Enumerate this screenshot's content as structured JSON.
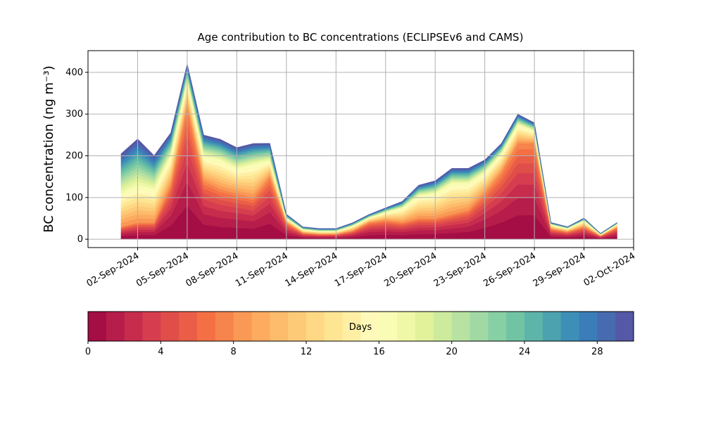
{
  "chart_data": {
    "type": "stacked_area",
    "title": "Age contribution to BC concentrations (ECLIPSEv6 and CAMS)",
    "y_label": "BC concentration (ng m⁻³)",
    "x": [
      "01-Sep-2024",
      "02-Sep-2024",
      "03-Sep-2024",
      "04-Sep-2024",
      "05-Sep-2024",
      "06-Sep-2024",
      "07-Sep-2024",
      "08-Sep-2024",
      "09-Sep-2024",
      "10-Sep-2024",
      "11-Sep-2024",
      "12-Sep-2024",
      "13-Sep-2024",
      "14-Sep-2024",
      "15-Sep-2024",
      "16-Sep-2024",
      "17-Sep-2024",
      "18-Sep-2024",
      "19-Sep-2024",
      "20-Sep-2024",
      "21-Sep-2024",
      "22-Sep-2024",
      "23-Sep-2024",
      "24-Sep-2024",
      "25-Sep-2024",
      "26-Sep-2024",
      "27-Sep-2024",
      "28-Sep-2024",
      "29-Sep-2024",
      "30-Sep-2024",
      "01-Oct-2024"
    ],
    "xlim": [
      "30-Aug-2024",
      "02-Oct-2024"
    ],
    "xticks": [
      "02-Sep-2024",
      "05-Sep-2024",
      "08-Sep-2024",
      "11-Sep-2024",
      "14-Sep-2024",
      "17-Sep-2024",
      "20-Sep-2024",
      "23-Sep-2024",
      "26-Sep-2024",
      "29-Sep-2024",
      "02-Oct-2024"
    ],
    "ylim": [
      -20,
      452
    ],
    "yticks": [
      0,
      100,
      200,
      300,
      400
    ],
    "grid": true,
    "series": [
      {
        "color": "#a50d45",
        "values": [
          7.5,
          10,
          10,
          32.5,
          80,
          35,
          30,
          27.5,
          25,
          37.5,
          10,
          3.8,
          3,
          3,
          5,
          10,
          11.3,
          10,
          12.5,
          12.5,
          15,
          17.5,
          27.5,
          40,
          57.5,
          57.5,
          6.3,
          4.5,
          7.5,
          2,
          7
        ]
      },
      {
        "color": "#b61d4a",
        "values": [
          5.4,
          7.2,
          7.2,
          23.4,
          57.6,
          25.2,
          21.6,
          19.8,
          18,
          27,
          7.2,
          2.7,
          2.2,
          2.2,
          3.6,
          7.2,
          8.1,
          7.2,
          9,
          9,
          10.8,
          12.6,
          19.8,
          28.8,
          41.4,
          41.4,
          4.5,
          3.2,
          5.4,
          1.4,
          5
        ]
      },
      {
        "color": "#c72c4c",
        "values": [
          4.2,
          5.6,
          5.6,
          18.2,
          44.8,
          19.6,
          16.8,
          15.4,
          14,
          21,
          5.6,
          2.1,
          1.7,
          1.7,
          2.8,
          5.6,
          6.3,
          5.6,
          7,
          7,
          8.4,
          9.8,
          15.4,
          22.4,
          32.2,
          32.2,
          3.5,
          2.5,
          4.2,
          1.1,
          3.9
        ]
      },
      {
        "color": "#d63e4f",
        "values": [
          3.6,
          4.8,
          4.8,
          15.6,
          38.4,
          16.8,
          14.4,
          13.2,
          12,
          18,
          4.8,
          1.8,
          1.4,
          1.4,
          2.4,
          4.8,
          5.4,
          4.8,
          6,
          6,
          7.2,
          8.4,
          13.2,
          19.2,
          27.6,
          27.6,
          3,
          2.2,
          3.6,
          1,
          3.4
        ]
      },
      {
        "color": "#e04e4a",
        "values": [
          3,
          4,
          4,
          13,
          32,
          14,
          12,
          11,
          10,
          15,
          4,
          1.5,
          1.2,
          1.2,
          2,
          4,
          4.5,
          4,
          5,
          5,
          6,
          7,
          11,
          16,
          23,
          23,
          2.5,
          1.8,
          3,
          0.8,
          2.8
        ]
      },
      {
        "color": "#ea5e47",
        "values": [
          2.4,
          3.2,
          3.2,
          10.4,
          25.6,
          11.2,
          9.6,
          8.8,
          8,
          12,
          3.2,
          1.2,
          1,
          1,
          1.6,
          3.2,
          3.6,
          3.2,
          4,
          4,
          4.8,
          5.6,
          8.8,
          12.8,
          18.4,
          18.4,
          2,
          1.4,
          2.4,
          0.6,
          2.2
        ]
      },
      {
        "color": "#f47044",
        "values": [
          2.1,
          2.8,
          2.8,
          9.1,
          22.4,
          9.8,
          8.4,
          7.7,
          7,
          10.5,
          2.8,
          1.1,
          0.8,
          0.8,
          1.4,
          2.8,
          3.2,
          2.8,
          3.5,
          3.5,
          4.2,
          4.9,
          7.7,
          11.2,
          16.1,
          16.1,
          1.8,
          1.3,
          2.1,
          0.6,
          2
        ]
      },
      {
        "color": "#f6844c",
        "values": [
          1.8,
          2.4,
          2.4,
          7.8,
          19.2,
          8.4,
          7.2,
          6.6,
          6,
          9,
          2.4,
          0.9,
          0.7,
          0.7,
          1.2,
          2.4,
          2.7,
          2.4,
          3,
          3,
          3.6,
          4.2,
          6.6,
          9.6,
          13.8,
          13.8,
          1.5,
          1.1,
          1.8,
          0.5,
          1.7
        ]
      },
      {
        "color": "#f99955",
        "values": [
          8.9,
          10,
          8.9,
          7.8,
          6.7,
          6.7,
          7.8,
          6.7,
          8.9,
          4.4,
          1.1,
          0.9,
          0.8,
          0.8,
          1.3,
          1.3,
          2.2,
          3.9,
          6.1,
          6.7,
          8.3,
          7.2,
          5.6,
          5,
          5,
          3.3,
          1.1,
          0.9,
          1.6,
          0.4,
          0.9
        ]
      },
      {
        "color": "#fcab5f",
        "values": [
          8.9,
          10,
          8.9,
          7.8,
          6.7,
          6.7,
          7.8,
          6.7,
          8.9,
          4.4,
          1.1,
          0.9,
          0.8,
          0.8,
          1.3,
          1.3,
          2.2,
          3.9,
          6.1,
          6.7,
          8.3,
          7.2,
          5.6,
          5,
          5,
          3.3,
          1.1,
          0.9,
          1.6,
          0.4,
          0.9
        ]
      },
      {
        "color": "#fdbb6c",
        "values": [
          8.9,
          10,
          8.9,
          7.8,
          6.7,
          6.7,
          7.8,
          6.7,
          8.9,
          4.4,
          1.1,
          0.9,
          0.8,
          0.8,
          1.3,
          1.3,
          2.2,
          3.9,
          6.1,
          6.7,
          8.3,
          7.2,
          5.6,
          5,
          5,
          3.3,
          1.1,
          0.9,
          1.6,
          0.4,
          0.9
        ]
      },
      {
        "color": "#fdca78",
        "values": [
          8.9,
          10,
          8.9,
          7.8,
          6.7,
          6.7,
          7.8,
          6.7,
          8.9,
          4.4,
          1.1,
          0.9,
          0.8,
          0.8,
          1.3,
          1.3,
          2.2,
          3.9,
          6.1,
          6.7,
          8.3,
          7.2,
          5.6,
          5,
          5,
          3.3,
          1.1,
          0.9,
          1.6,
          0.4,
          0.9
        ]
      },
      {
        "color": "#fed884",
        "values": [
          8.9,
          10,
          8.9,
          7.8,
          6.7,
          6.7,
          7.8,
          6.7,
          8.9,
          4.4,
          1.1,
          0.9,
          0.8,
          0.8,
          1.3,
          1.3,
          2.2,
          3.9,
          6.1,
          6.7,
          8.3,
          7.2,
          5.6,
          5,
          5,
          3.3,
          1.1,
          0.9,
          1.6,
          0.4,
          0.9
        ]
      },
      {
        "color": "#fee593",
        "values": [
          8.9,
          10,
          8.9,
          7.8,
          6.7,
          6.7,
          7.8,
          6.7,
          8.9,
          4.4,
          1.1,
          0.9,
          0.8,
          0.8,
          1.3,
          1.3,
          2.2,
          3.9,
          6.1,
          6.7,
          8.3,
          7.2,
          5.6,
          5,
          5,
          3.3,
          1.1,
          0.9,
          1.6,
          0.4,
          0.9
        ]
      },
      {
        "color": "#feefa5",
        "values": [
          8.9,
          10,
          8.9,
          7.8,
          6.7,
          6.7,
          7.8,
          6.7,
          8.9,
          4.4,
          1.1,
          0.9,
          0.8,
          0.8,
          1.3,
          1.3,
          2.2,
          3.9,
          6.1,
          6.7,
          8.3,
          7.2,
          5.6,
          5,
          5,
          3.3,
          1.1,
          0.9,
          1.6,
          0.4,
          0.9
        ]
      },
      {
        "color": "#fffab9",
        "values": [
          8.9,
          10,
          8.9,
          7.8,
          6.7,
          6.7,
          7.8,
          6.7,
          8.9,
          4.4,
          1.1,
          0.9,
          0.8,
          0.8,
          1.3,
          1.3,
          2.2,
          3.9,
          6.1,
          6.7,
          8.3,
          7.2,
          5.6,
          5,
          5,
          3.3,
          1.1,
          0.9,
          1.6,
          0.4,
          0.9
        ]
      },
      {
        "color": "#f9fcb5",
        "values": [
          8.9,
          10,
          8.9,
          7.8,
          6.7,
          6.7,
          7.8,
          6.7,
          8.9,
          4.4,
          1.1,
          0.9,
          0.8,
          0.8,
          1.3,
          1.3,
          2.2,
          3.9,
          6.1,
          6.7,
          8.3,
          7.2,
          5.6,
          5,
          5,
          3.3,
          1.1,
          0.9,
          1.6,
          0.4,
          0.9
        ]
      },
      {
        "color": "#eff8a6",
        "values": [
          7.3,
          8.5,
          6.2,
          4.2,
          3.1,
          3.8,
          3.8,
          3.8,
          3.8,
          3.1,
          0.8,
          0.5,
          0.5,
          0.5,
          0.6,
          0.6,
          0.8,
          1.2,
          1.9,
          2.3,
          2.7,
          2.7,
          2.3,
          1.9,
          1.9,
          1.5,
          0.4,
          0.3,
          0.5,
          0.2,
          0.3
        ]
      },
      {
        "color": "#e1f29b",
        "values": [
          7.3,
          8.5,
          6.2,
          4.2,
          3.1,
          3.8,
          3.8,
          3.8,
          3.8,
          3.1,
          0.8,
          0.5,
          0.5,
          0.5,
          0.6,
          0.6,
          0.8,
          1.2,
          1.9,
          2.3,
          2.7,
          2.7,
          2.3,
          1.9,
          1.9,
          1.5,
          0.4,
          0.3,
          0.5,
          0.2,
          0.3
        ]
      },
      {
        "color": "#cdeb9d",
        "values": [
          7.3,
          8.5,
          6.2,
          4.2,
          3.1,
          3.8,
          3.8,
          3.8,
          3.8,
          3.1,
          0.8,
          0.5,
          0.5,
          0.5,
          0.6,
          0.6,
          0.8,
          1.2,
          1.9,
          2.3,
          2.7,
          2.7,
          2.3,
          1.9,
          1.9,
          1.5,
          0.4,
          0.3,
          0.5,
          0.2,
          0.3
        ]
      },
      {
        "color": "#b8e2a1",
        "values": [
          7.3,
          8.5,
          6.2,
          4.2,
          3.1,
          3.8,
          3.8,
          3.8,
          3.8,
          3.1,
          0.8,
          0.5,
          0.5,
          0.5,
          0.6,
          0.6,
          0.8,
          1.2,
          1.9,
          2.3,
          2.7,
          2.7,
          2.3,
          1.9,
          1.9,
          1.5,
          0.4,
          0.3,
          0.5,
          0.2,
          0.3
        ]
      },
      {
        "color": "#a1d9a4",
        "values": [
          7.3,
          8.5,
          6.2,
          4.2,
          3.1,
          3.8,
          3.8,
          3.8,
          3.8,
          3.1,
          0.8,
          0.5,
          0.5,
          0.5,
          0.6,
          0.6,
          0.8,
          1.2,
          1.9,
          2.3,
          2.7,
          2.7,
          2.3,
          1.9,
          1.9,
          1.5,
          0.4,
          0.3,
          0.5,
          0.2,
          0.3
        ]
      },
      {
        "color": "#87cfa4",
        "values": [
          7.3,
          8.5,
          6.2,
          4.2,
          3.1,
          3.8,
          3.8,
          3.8,
          3.8,
          3.1,
          0.8,
          0.5,
          0.5,
          0.5,
          0.6,
          0.6,
          0.8,
          1.2,
          1.9,
          2.3,
          2.7,
          2.7,
          2.3,
          1.9,
          1.9,
          1.5,
          0.4,
          0.3,
          0.5,
          0.2,
          0.3
        ]
      },
      {
        "color": "#70c4a4",
        "values": [
          7.3,
          8.5,
          6.2,
          4.2,
          3.1,
          3.8,
          3.8,
          3.8,
          3.8,
          3.1,
          0.8,
          0.5,
          0.5,
          0.5,
          0.6,
          0.6,
          0.8,
          1.2,
          1.9,
          2.3,
          2.7,
          2.7,
          2.3,
          1.9,
          1.9,
          1.5,
          0.4,
          0.3,
          0.5,
          0.2,
          0.3
        ]
      },
      {
        "color": "#5db4a9",
        "values": [
          7.3,
          8.5,
          6.2,
          4.2,
          3.1,
          3.8,
          3.8,
          3.8,
          3.8,
          3.1,
          0.8,
          0.5,
          0.5,
          0.5,
          0.6,
          0.6,
          0.8,
          1.2,
          1.9,
          2.3,
          2.7,
          2.7,
          2.3,
          1.9,
          1.9,
          1.5,
          0.4,
          0.3,
          0.5,
          0.2,
          0.3
        ]
      },
      {
        "color": "#4da2af",
        "values": [
          7.3,
          8.5,
          6.2,
          4.2,
          3.1,
          3.8,
          3.8,
          3.8,
          3.8,
          3.1,
          0.8,
          0.5,
          0.5,
          0.5,
          0.6,
          0.6,
          0.8,
          1.2,
          1.9,
          2.3,
          2.7,
          2.7,
          2.3,
          1.9,
          1.9,
          1.5,
          0.4,
          0.3,
          0.5,
          0.2,
          0.3
        ]
      },
      {
        "color": "#3d8fb8",
        "values": [
          7.3,
          8.5,
          6.2,
          4.2,
          3.1,
          3.8,
          3.8,
          3.8,
          3.8,
          3.1,
          0.8,
          0.5,
          0.5,
          0.5,
          0.6,
          0.6,
          0.8,
          1.2,
          1.9,
          2.3,
          2.7,
          2.7,
          2.3,
          1.9,
          1.9,
          1.5,
          0.4,
          0.3,
          0.5,
          0.2,
          0.3
        ]
      },
      {
        "color": "#3a7db8",
        "values": [
          7.3,
          8.5,
          6.2,
          4.2,
          3.1,
          3.8,
          3.8,
          3.8,
          3.8,
          3.1,
          0.8,
          0.5,
          0.5,
          0.5,
          0.6,
          0.6,
          0.8,
          1.2,
          1.9,
          2.3,
          2.7,
          2.7,
          2.3,
          1.9,
          1.9,
          1.5,
          0.4,
          0.3,
          0.5,
          0.2,
          0.3
        ]
      },
      {
        "color": "#476bb0",
        "values": [
          7.3,
          8.5,
          6.2,
          4.2,
          3.1,
          3.8,
          3.8,
          3.8,
          3.8,
          3.1,
          0.8,
          0.5,
          0.5,
          0.5,
          0.6,
          0.6,
          0.8,
          1.2,
          1.9,
          2.3,
          2.7,
          2.7,
          2.3,
          1.9,
          1.9,
          1.5,
          0.4,
          0.3,
          0.5,
          0.2,
          0.3
        ]
      },
      {
        "color": "#5558a6",
        "values": [
          7.3,
          8.5,
          6.2,
          4.2,
          3.1,
          3.8,
          3.8,
          3.8,
          3.8,
          3.1,
          0.8,
          0.5,
          0.5,
          0.5,
          0.6,
          0.6,
          0.8,
          1.2,
          1.9,
          2.3,
          2.7,
          2.7,
          2.3,
          1.9,
          1.9,
          1.5,
          0.4,
          0.3,
          0.5,
          0.2,
          0.3
        ]
      }
    ],
    "colorbar": {
      "label": "Days",
      "lim": [
        0,
        30
      ],
      "ticks": [
        0,
        4,
        8,
        12,
        16,
        20,
        24,
        28
      ]
    }
  }
}
